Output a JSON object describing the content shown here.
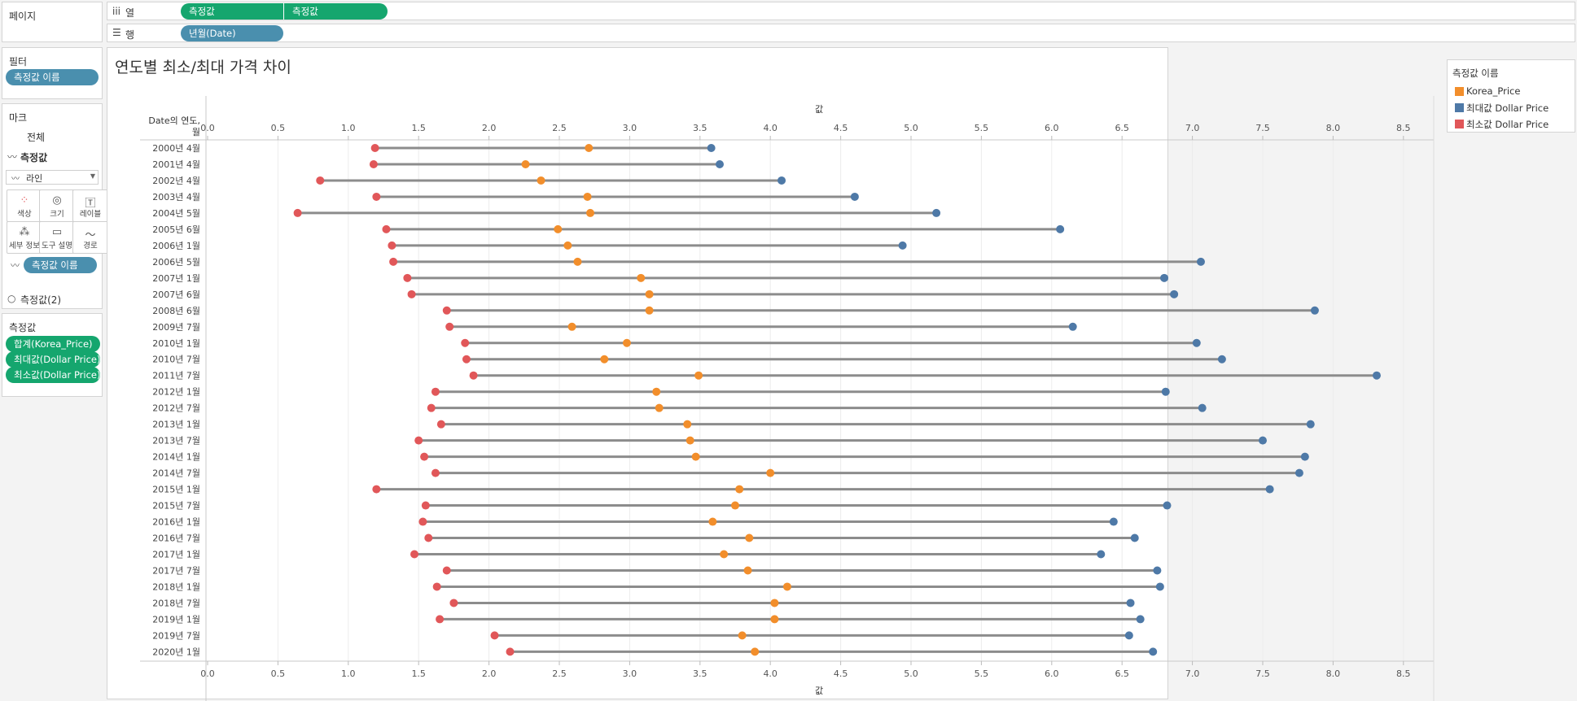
{
  "shelves": {
    "pages_label": "페이지",
    "columns_label": "열",
    "columns_pills": [
      "측정값",
      "측정값"
    ],
    "rows_label": "행",
    "rows_pill": "년월(Date)"
  },
  "filters": {
    "title": "필터",
    "pill": "측정값 이름"
  },
  "marks": {
    "title": "마크",
    "all_label": "전체",
    "measure_label": "측정값",
    "mark_type": "라인",
    "buttons": {
      "color": "색상",
      "size": "크기",
      "label": "레이블",
      "detail": "세부 정보",
      "tooltip": "도구 설명",
      "path": "경로"
    },
    "path_pill": "측정값 이름",
    "measure2_label": "측정값(2)"
  },
  "measure_values": {
    "title": "측정값",
    "pills": [
      "합계(Korea_Price)",
      "최대값(Dollar Price)",
      "최소값(Dollar Price)"
    ]
  },
  "legend": {
    "title": "측정값 이름",
    "items": [
      {
        "label": "Korea_Price",
        "color": "#f28e2b"
      },
      {
        "label": "최대값 Dollar Price",
        "color": "#4e79a7"
      },
      {
        "label": "최소값 Dollar Price",
        "color": "#e15759"
      }
    ]
  },
  "chart_data": {
    "type": "scatter",
    "title": "연도별 최소/최대 가격 차이",
    "xlabel": "값",
    "row_header": "Date의 연도, 월",
    "xlim": [
      0,
      8.75
    ],
    "xticks": [
      "0.0",
      "0.5",
      "1.0",
      "1.5",
      "2.0",
      "2.5",
      "3.0",
      "3.5",
      "4.0",
      "4.5",
      "5.0",
      "5.5",
      "6.0",
      "6.5",
      "7.0",
      "7.5",
      "8.0",
      "8.5"
    ],
    "grid": true,
    "legend": "right",
    "categories": [
      "2000년 4월",
      "2001년 4월",
      "2002년 4월",
      "2003년 4월",
      "2004년 5월",
      "2005년 6월",
      "2006년 1월",
      "2006년 5월",
      "2007년 1월",
      "2007년 6월",
      "2008년 6월",
      "2009년 7월",
      "2010년 1월",
      "2010년 7월",
      "2011년 7월",
      "2012년 1월",
      "2012년 7월",
      "2013년 1월",
      "2013년 7월",
      "2014년 1월",
      "2014년 7월",
      "2015년 1월",
      "2015년 7월",
      "2016년 1월",
      "2016년 7월",
      "2017년 1월",
      "2017년 7월",
      "2018년 1월",
      "2018년 7월",
      "2019년 1월",
      "2019년 7월",
      "2020년 1월"
    ],
    "series": [
      {
        "name": "Korea_Price",
        "color": "#f28e2b",
        "values": [
          2.71,
          2.26,
          2.37,
          2.7,
          2.72,
          2.49,
          2.56,
          2.63,
          3.08,
          3.14,
          3.14,
          2.59,
          2.98,
          2.82,
          3.49,
          3.19,
          3.21,
          3.41,
          3.43,
          3.47,
          4.0,
          3.78,
          3.75,
          3.59,
          3.85,
          3.67,
          3.84,
          4.12,
          4.03,
          4.03,
          3.8,
          3.89
        ]
      },
      {
        "name": "최대값 Dollar Price",
        "color": "#4e79a7",
        "values": [
          3.58,
          3.64,
          4.08,
          4.6,
          5.18,
          6.06,
          4.94,
          7.06,
          6.8,
          6.87,
          7.87,
          6.15,
          7.03,
          7.21,
          8.31,
          6.81,
          7.07,
          7.84,
          7.5,
          7.8,
          7.76,
          7.55,
          6.82,
          6.44,
          6.59,
          6.35,
          6.75,
          6.77,
          6.56,
          6.63,
          6.55,
          6.72
        ]
      },
      {
        "name": "최소값 Dollar Price",
        "color": "#e15759",
        "values": [
          1.19,
          1.18,
          0.8,
          1.2,
          0.64,
          1.27,
          1.31,
          1.32,
          1.42,
          1.45,
          1.7,
          1.72,
          1.83,
          1.84,
          1.89,
          1.62,
          1.59,
          1.66,
          1.5,
          1.54,
          1.62,
          1.2,
          1.55,
          1.53,
          1.57,
          1.47,
          1.7,
          1.63,
          1.75,
          1.65,
          2.04,
          2.15
        ]
      }
    ]
  }
}
